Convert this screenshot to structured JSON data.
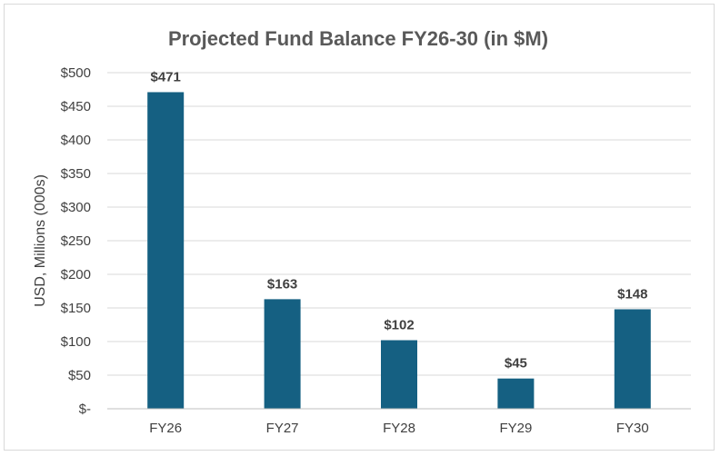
{
  "chart_data": {
    "type": "bar",
    "title": "Projected Fund Balance FY26-30 (in $M)",
    "ylabel": "USD, Millions (000s)",
    "xlabel": "",
    "categories": [
      "FY26",
      "FY27",
      "FY28",
      "FY29",
      "FY30"
    ],
    "values": [
      471,
      163,
      102,
      45,
      148
    ],
    "data_labels": [
      "$471",
      "$163",
      "$102",
      "$45",
      "$148"
    ],
    "ylim": [
      0,
      500
    ],
    "y_ticks": [
      0,
      50,
      100,
      150,
      200,
      250,
      300,
      350,
      400,
      450,
      500
    ],
    "y_tick_labels": [
      "$-",
      "$50",
      "$100",
      "$150",
      "$200",
      "$250",
      "$300",
      "$350",
      "$400",
      "$450",
      "$500"
    ],
    "grid": true,
    "legend": "none",
    "bar_color": "#156082"
  }
}
